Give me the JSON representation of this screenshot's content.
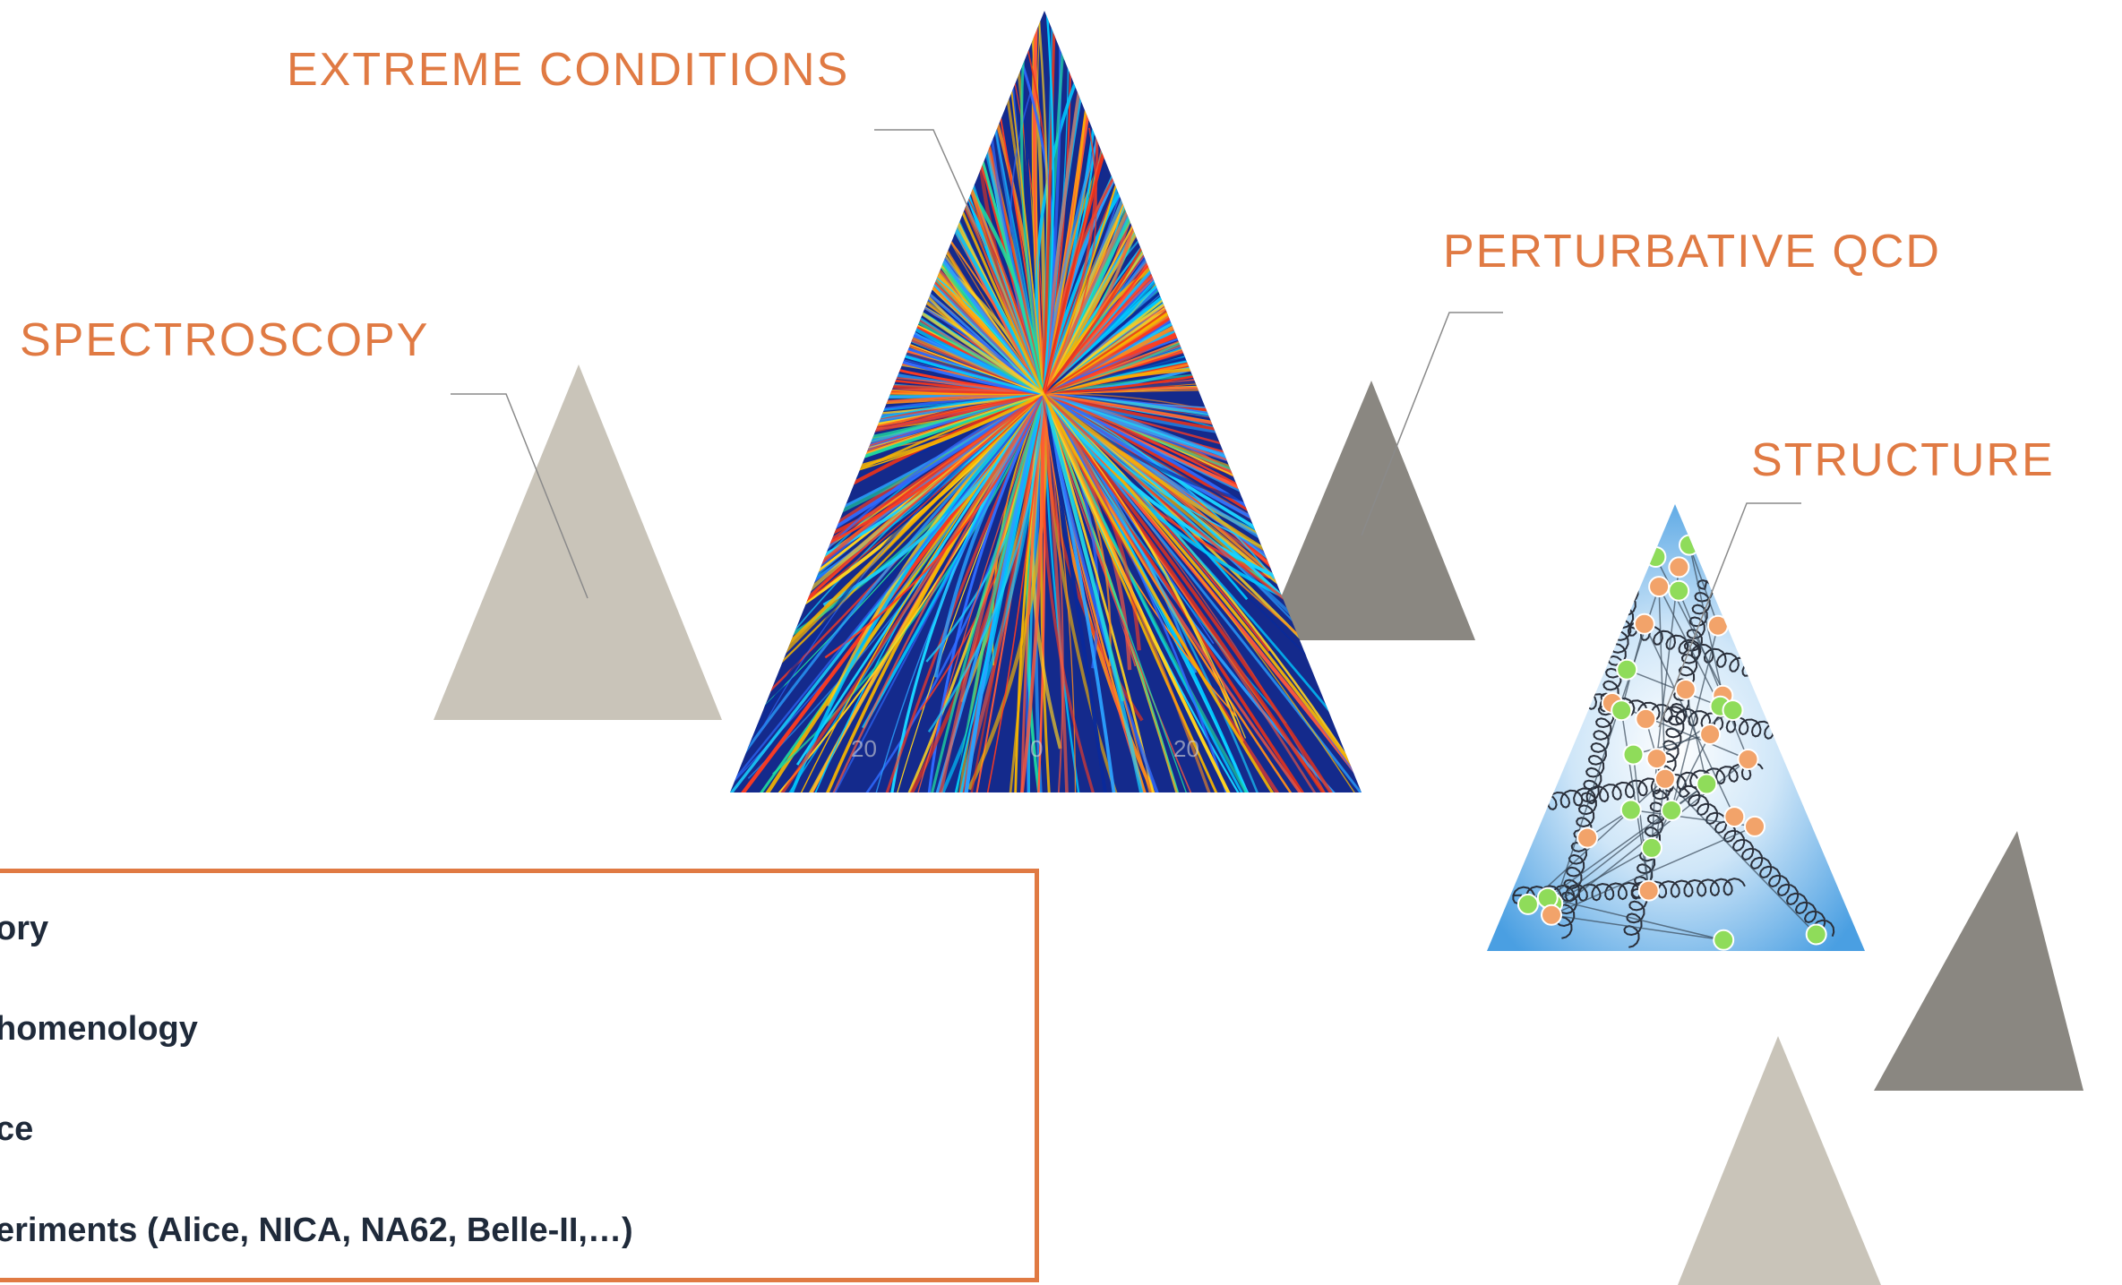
{
  "colors": {
    "accent": "#e07a43",
    "text_dark": "#1f2a3a",
    "triangle_light": "#c9c4b9",
    "triangle_dark": "#8a8781",
    "leader_line": "#8a8a8a"
  },
  "labels": {
    "extreme_conditions": "EXTREME CONDITIONS",
    "perturbative_qcd": "PERTURBATIVE QCD",
    "spectroscopy": "SPECTROSCOPY",
    "structure": "STRUCTURE"
  },
  "box": {
    "items": [
      "ory",
      "homenology",
      "ce",
      "eriments (Alice, NICA, NA62, Belle-II,…)"
    ]
  },
  "images": {
    "collision_tracks": "particle-collision-event",
    "proton_structure": "quark-gluon-structure"
  },
  "collision_axis_ticks": [
    "20",
    "0",
    "20"
  ]
}
